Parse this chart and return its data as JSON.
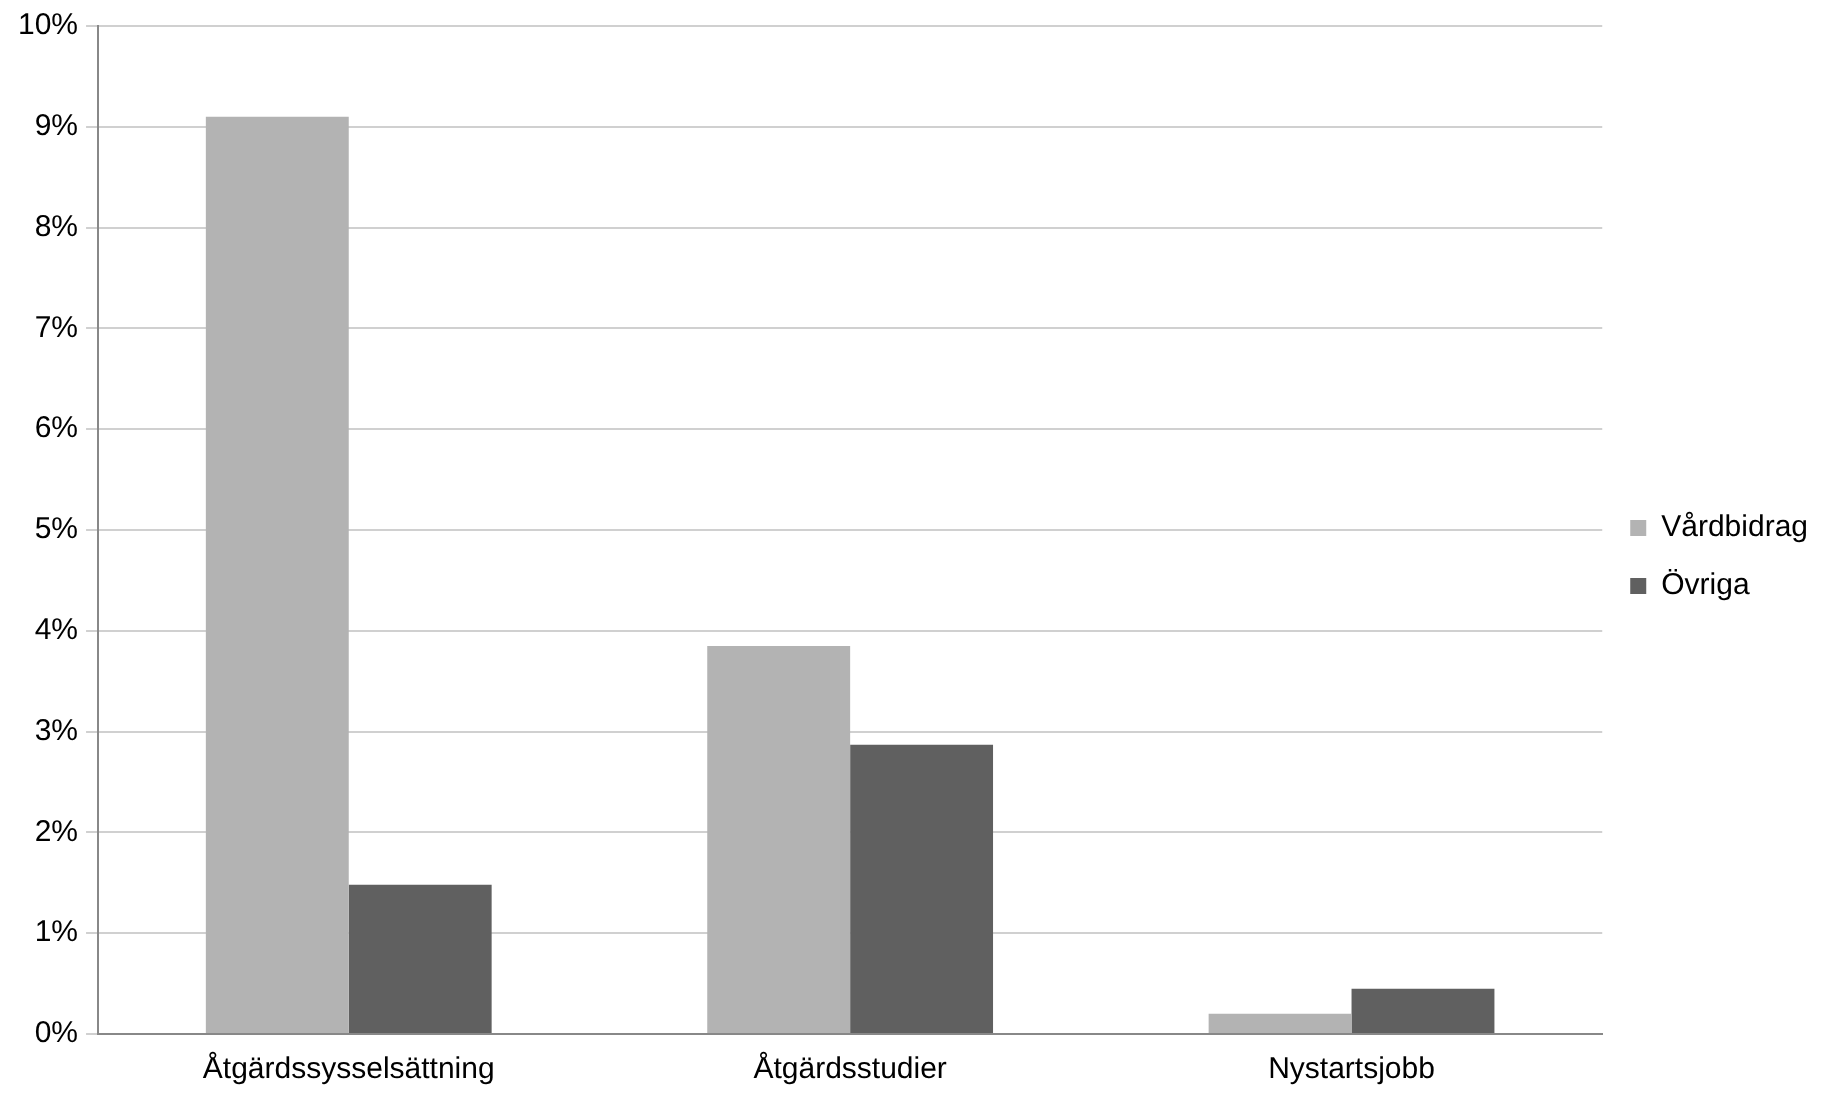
{
  "chart_data": {
    "type": "bar",
    "categories": [
      "Åtgärdssysselsättning",
      "Åtgärdsstudier",
      "Nystartsjobb"
    ],
    "series": [
      {
        "name": "Vårdbidrag",
        "color": "#b3b3b3",
        "values": [
          9.1,
          3.85,
          0.2
        ]
      },
      {
        "name": "Övriga",
        "color": "#606060",
        "values": [
          1.48,
          2.87,
          0.45
        ]
      }
    ],
    "ylim": [
      0,
      10
    ],
    "yticks": [
      {
        "value": 0,
        "label": "0%"
      },
      {
        "value": 1,
        "label": "1%"
      },
      {
        "value": 2,
        "label": "2%"
      },
      {
        "value": 3,
        "label": "3%"
      },
      {
        "value": 4,
        "label": "4%"
      },
      {
        "value": 5,
        "label": "5%"
      },
      {
        "value": 6,
        "label": "6%"
      },
      {
        "value": 7,
        "label": "7%"
      },
      {
        "value": 8,
        "label": "8%"
      },
      {
        "value": 9,
        "label": "9%"
      },
      {
        "value": 10,
        "label": "10%"
      }
    ],
    "grid": "y",
    "legend": "right"
  }
}
